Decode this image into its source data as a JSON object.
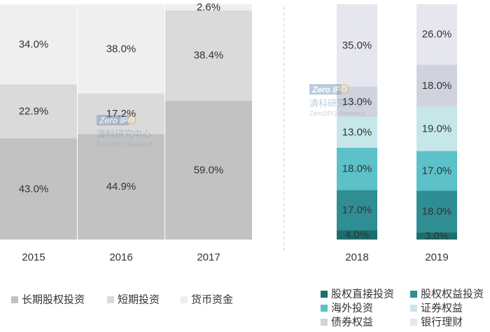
{
  "chart_data": [
    {
      "type": "bar",
      "stacked": true,
      "categories": [
        "2015",
        "2016",
        "2017"
      ],
      "ylim": [
        0,
        100
      ],
      "grid": false,
      "legend_position": "bottom",
      "series": [
        {
          "name": "长期股权投资",
          "color": "#c2c2c2",
          "values": [
            43.0,
            44.9,
            59.0
          ],
          "labels": [
            "43.0%",
            "44.9%",
            "59.0%"
          ]
        },
        {
          "name": "短期投资",
          "color": "#dadada",
          "values": [
            22.9,
            17.2,
            38.4
          ],
          "labels": [
            "22.9%",
            "17.2%",
            "38.4%"
          ]
        },
        {
          "name": "货币资金",
          "color": "#efefef",
          "values": [
            34.0,
            38.0,
            2.6
          ],
          "labels": [
            "34.0%",
            "38.0%",
            "2.6%"
          ]
        }
      ]
    },
    {
      "type": "bar",
      "stacked": true,
      "categories": [
        "2018",
        "2019"
      ],
      "ylim": [
        0,
        100
      ],
      "grid": false,
      "legend_position": "bottom",
      "series": [
        {
          "name": "股权直接投资",
          "color": "#1a6f6d",
          "values": [
            4.0,
            3.0
          ],
          "labels": [
            "4.0%",
            "3.0%"
          ]
        },
        {
          "name": "股权权益投资",
          "color": "#2e8e94",
          "values": [
            17.0,
            18.0
          ],
          "labels": [
            "17.0%",
            "18.0%"
          ]
        },
        {
          "name": "海外投资",
          "color": "#5cc1c9",
          "values": [
            18.0,
            17.0
          ],
          "labels": [
            "18.0%",
            "17.0%"
          ]
        },
        {
          "name": "证券权益",
          "color": "#c6e7ea",
          "values": [
            13.0,
            19.0
          ],
          "labels": [
            "13.0%",
            "19.0%"
          ]
        },
        {
          "name": "债券权益",
          "color": "#d0d3dd",
          "values": [
            13.0,
            18.0
          ],
          "labels": [
            "13.0%",
            "18.0%"
          ]
        },
        {
          "name": "银行理财",
          "color": "#e6e7ee",
          "values": [
            35.0,
            26.0
          ],
          "labels": [
            "35.0%",
            "26.0%"
          ]
        }
      ]
    }
  ],
  "watermark": {
    "logo_text": "Zero IPO",
    "cn_text": "清科研究中心",
    "en_text": "Zero2IPO Research"
  }
}
